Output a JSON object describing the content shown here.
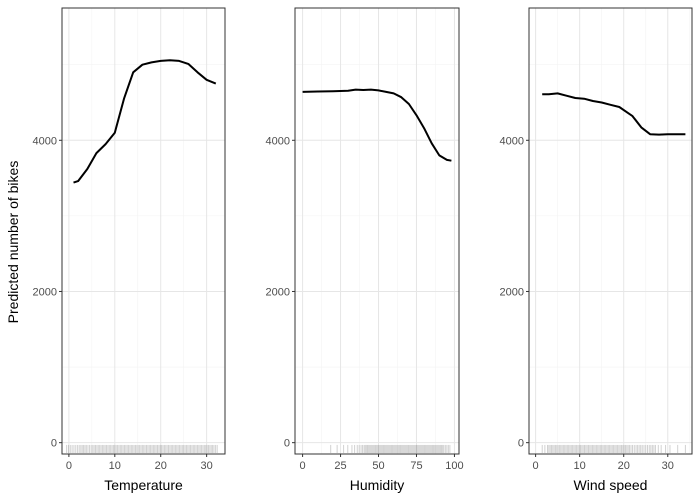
{
  "chart_data": {
    "type": "line",
    "ylabel": "Predicted number of bikes",
    "ylim": [
      -150,
      5750
    ],
    "y_ticks": [
      0,
      2000,
      4000
    ],
    "grid": true,
    "panels": [
      {
        "xlabel": "Temperature",
        "xlim": [
          -1.5,
          34
        ],
        "x_ticks": [
          0,
          10,
          20,
          30
        ],
        "line": {
          "x": [
            1,
            2,
            4,
            6,
            8,
            10,
            12,
            14,
            16,
            18,
            20,
            22,
            24,
            26,
            28,
            30,
            32
          ],
          "y": [
            3440,
            3460,
            3620,
            3830,
            3950,
            4100,
            4550,
            4900,
            5000,
            5030,
            5050,
            5060,
            5050,
            5010,
            4900,
            4800,
            4750
          ]
        },
        "rug": [
          -0.5,
          0.3,
          1.1,
          1.9,
          2.6,
          3.2,
          3.8,
          4.5,
          5.2,
          5.8,
          6.4,
          7.0,
          7.6,
          8.2,
          8.8,
          9.4,
          10.0,
          10.6,
          11.2,
          11.8,
          12.4,
          13.0,
          13.6,
          14.2,
          14.8,
          15.4,
          16.0,
          16.6,
          17.2,
          17.8,
          18.4,
          19.0,
          19.6,
          20.2,
          20.8,
          21.4,
          22.0,
          22.6,
          23.2,
          23.8,
          24.4,
          25.0,
          25.6,
          26.2,
          26.8,
          27.4,
          28.0,
          28.6,
          29.2,
          29.8,
          30.4,
          31.0,
          31.6,
          32.3
        ]
      },
      {
        "xlabel": "Humidity",
        "xlim": [
          -5,
          103
        ],
        "x_ticks": [
          0,
          25,
          50,
          75,
          100
        ],
        "line": {
          "x": [
            0,
            10,
            20,
            30,
            35,
            40,
            45,
            50,
            55,
            60,
            65,
            70,
            75,
            80,
            85,
            90,
            95,
            98
          ],
          "y": [
            4640,
            4645,
            4650,
            4655,
            4670,
            4665,
            4670,
            4660,
            4640,
            4620,
            4570,
            4480,
            4330,
            4160,
            3960,
            3800,
            3740,
            3730
          ]
        },
        "rug": [
          18.5,
          27.0,
          32.5,
          36.0,
          38.5,
          40.5,
          42.0,
          43.5,
          45.0,
          46.5,
          48.0,
          49.5,
          51.0,
          52.5,
          54.0,
          55.5,
          57.0,
          58.5,
          60.0,
          61.5,
          63.0,
          64.5,
          66.0,
          67.5,
          69.0,
          70.5,
          72.0,
          73.5,
          75.0,
          76.5,
          78.0,
          79.5,
          81.0,
          82.5,
          84.0,
          85.5,
          87.0,
          88.5,
          90.0,
          91.5,
          93.0,
          95.0,
          97.0
        ]
      },
      {
        "xlabel": "Wind speed",
        "xlim": [
          -1.5,
          35.5
        ],
        "x_ticks": [
          0,
          10,
          20,
          30
        ],
        "line": {
          "x": [
            1.5,
            3,
            5,
            7,
            9,
            11,
            13,
            15,
            17,
            19,
            21,
            22,
            24,
            26,
            28,
            30,
            32,
            34
          ],
          "y": [
            4610,
            4610,
            4620,
            4590,
            4560,
            4550,
            4520,
            4500,
            4470,
            4440,
            4360,
            4320,
            4170,
            4080,
            4075,
            4080,
            4080,
            4080
          ]
        },
        "rug": [
          1.5,
          2.7,
          3.3,
          3.9,
          4.5,
          5.1,
          5.7,
          6.3,
          6.9,
          7.5,
          8.1,
          8.7,
          9.3,
          9.9,
          10.5,
          11.1,
          11.7,
          12.3,
          12.9,
          13.5,
          14.1,
          14.7,
          15.3,
          15.9,
          16.5,
          17.1,
          17.7,
          18.3,
          18.9,
          19.5,
          20.1,
          20.7,
          21.3,
          22.0,
          22.8,
          23.5,
          24.2,
          25.0,
          25.8,
          26.5,
          27.2,
          28.5,
          30.5,
          34.0
        ]
      }
    ]
  }
}
